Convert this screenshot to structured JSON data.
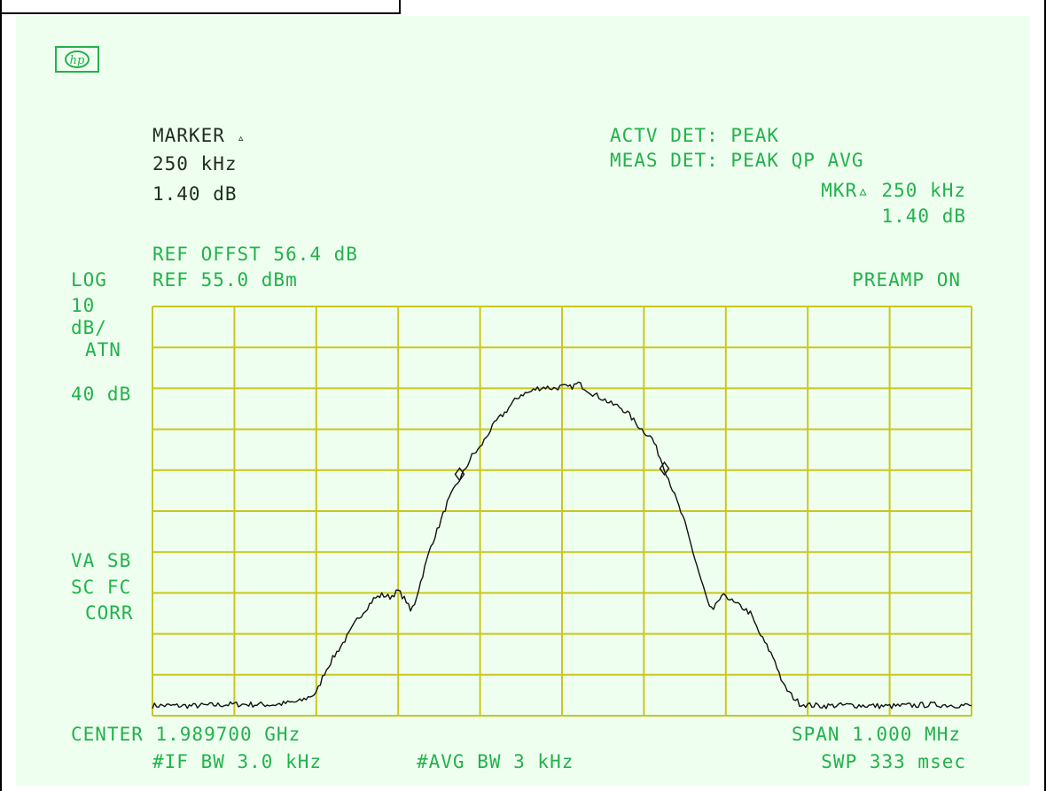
{
  "instrument": {
    "logo": "hp",
    "marker": {
      "label": "MARKER",
      "delta_glyph": "▵",
      "freq": "250 kHz",
      "level": "1.40 dB"
    },
    "actv_det": "ACTV DET: PEAK",
    "meas_det": "MEAS DET: PEAK QP AVG",
    "mkr_label": "MKR▵ 250 kHz",
    "mkr_level": "1.40 dB",
    "ref_offset": "REF OFFST 56.4 dB",
    "ref_level": "REF 55.0 dBm",
    "scale_log": "LOG",
    "scale_div_value": "10",
    "scale_div_unit": "dB/",
    "atn_label": "ATN",
    "atn_value": "40 dB",
    "preamp": "PREAMP ON",
    "va_sb": "VA SB",
    "sc_fc": "SC FC",
    "corr": "CORR",
    "center": "CENTER 1.989700 GHz",
    "span": "SPAN 1.000 MHz",
    "if_bw": "#IF BW 3.0 kHz",
    "avg_bw": "#AVG BW 3 kHz",
    "sweep": "SWP 333 msec"
  },
  "chart_data": {
    "type": "line",
    "xlabel": "",
    "ylabel": "",
    "x_unit": "MHz offset from center",
    "y_unit": "dBm",
    "xlim": [
      -0.5,
      0.5
    ],
    "ylim": [
      -45,
      55
    ],
    "grid": true,
    "x_divisions": 10,
    "y_divisions": 10,
    "colors": {
      "grid": "#c8c81e",
      "trace": "#111111",
      "text": "#22b24c",
      "background": "#efffef"
    },
    "series": [
      {
        "x": [
          -0.5,
          -0.45,
          -0.4,
          -0.35,
          -0.32,
          -0.3,
          -0.29,
          -0.28,
          -0.27,
          -0.26,
          -0.25,
          -0.24,
          -0.23,
          -0.22,
          -0.21,
          -0.2,
          -0.19,
          -0.185,
          -0.18,
          -0.17,
          -0.16,
          -0.15,
          -0.14,
          -0.13,
          -0.12,
          -0.11,
          -0.1,
          -0.09,
          -0.08,
          -0.07,
          -0.06,
          -0.05,
          -0.04,
          -0.03,
          -0.02,
          -0.01,
          0.0,
          0.01,
          0.02,
          0.03,
          0.04,
          0.05,
          0.06,
          0.07,
          0.08,
          0.09,
          0.1,
          0.11,
          0.12,
          0.13,
          0.14,
          0.15,
          0.16,
          0.17,
          0.18,
          0.185,
          0.19,
          0.2,
          0.21,
          0.22,
          0.23,
          0.24,
          0.25,
          0.26,
          0.27,
          0.28,
          0.29,
          0.3,
          0.32,
          0.35,
          0.4,
          0.45,
          0.5
        ],
        "y": [
          -42.5,
          -42.6,
          -42.2,
          -42.3,
          -41.5,
          -39.5,
          -34.5,
          -31.0,
          -28.0,
          -25.0,
          -21.5,
          -19.0,
          -16.5,
          -15.5,
          -16.0,
          -14.5,
          -17.0,
          -19.5,
          -17.5,
          -10.5,
          -3.5,
          1.5,
          7.0,
          11.0,
          14.5,
          18.5,
          20.5,
          24.0,
          27.0,
          29.0,
          31.5,
          33.5,
          34.0,
          35.0,
          35.3,
          35.0,
          35.4,
          35.2,
          36.2,
          34.8,
          33.4,
          32.5,
          31.2,
          30.5,
          29.0,
          26.5,
          24.5,
          22.8,
          18.0,
          13.0,
          7.5,
          2.0,
          -5.0,
          -12.0,
          -18.5,
          -19.5,
          -17.0,
          -15.5,
          -17.5,
          -18.5,
          -20.0,
          -24.5,
          -28.0,
          -31.5,
          -37.5,
          -40.0,
          -42.0,
          -42.4,
          -42.6,
          -42.4,
          -42.7,
          -42.3,
          -42.5
        ]
      }
    ],
    "markers": [
      {
        "x": -0.125,
        "y": 14.0
      },
      {
        "x": 0.125,
        "y": 15.4
      }
    ]
  }
}
